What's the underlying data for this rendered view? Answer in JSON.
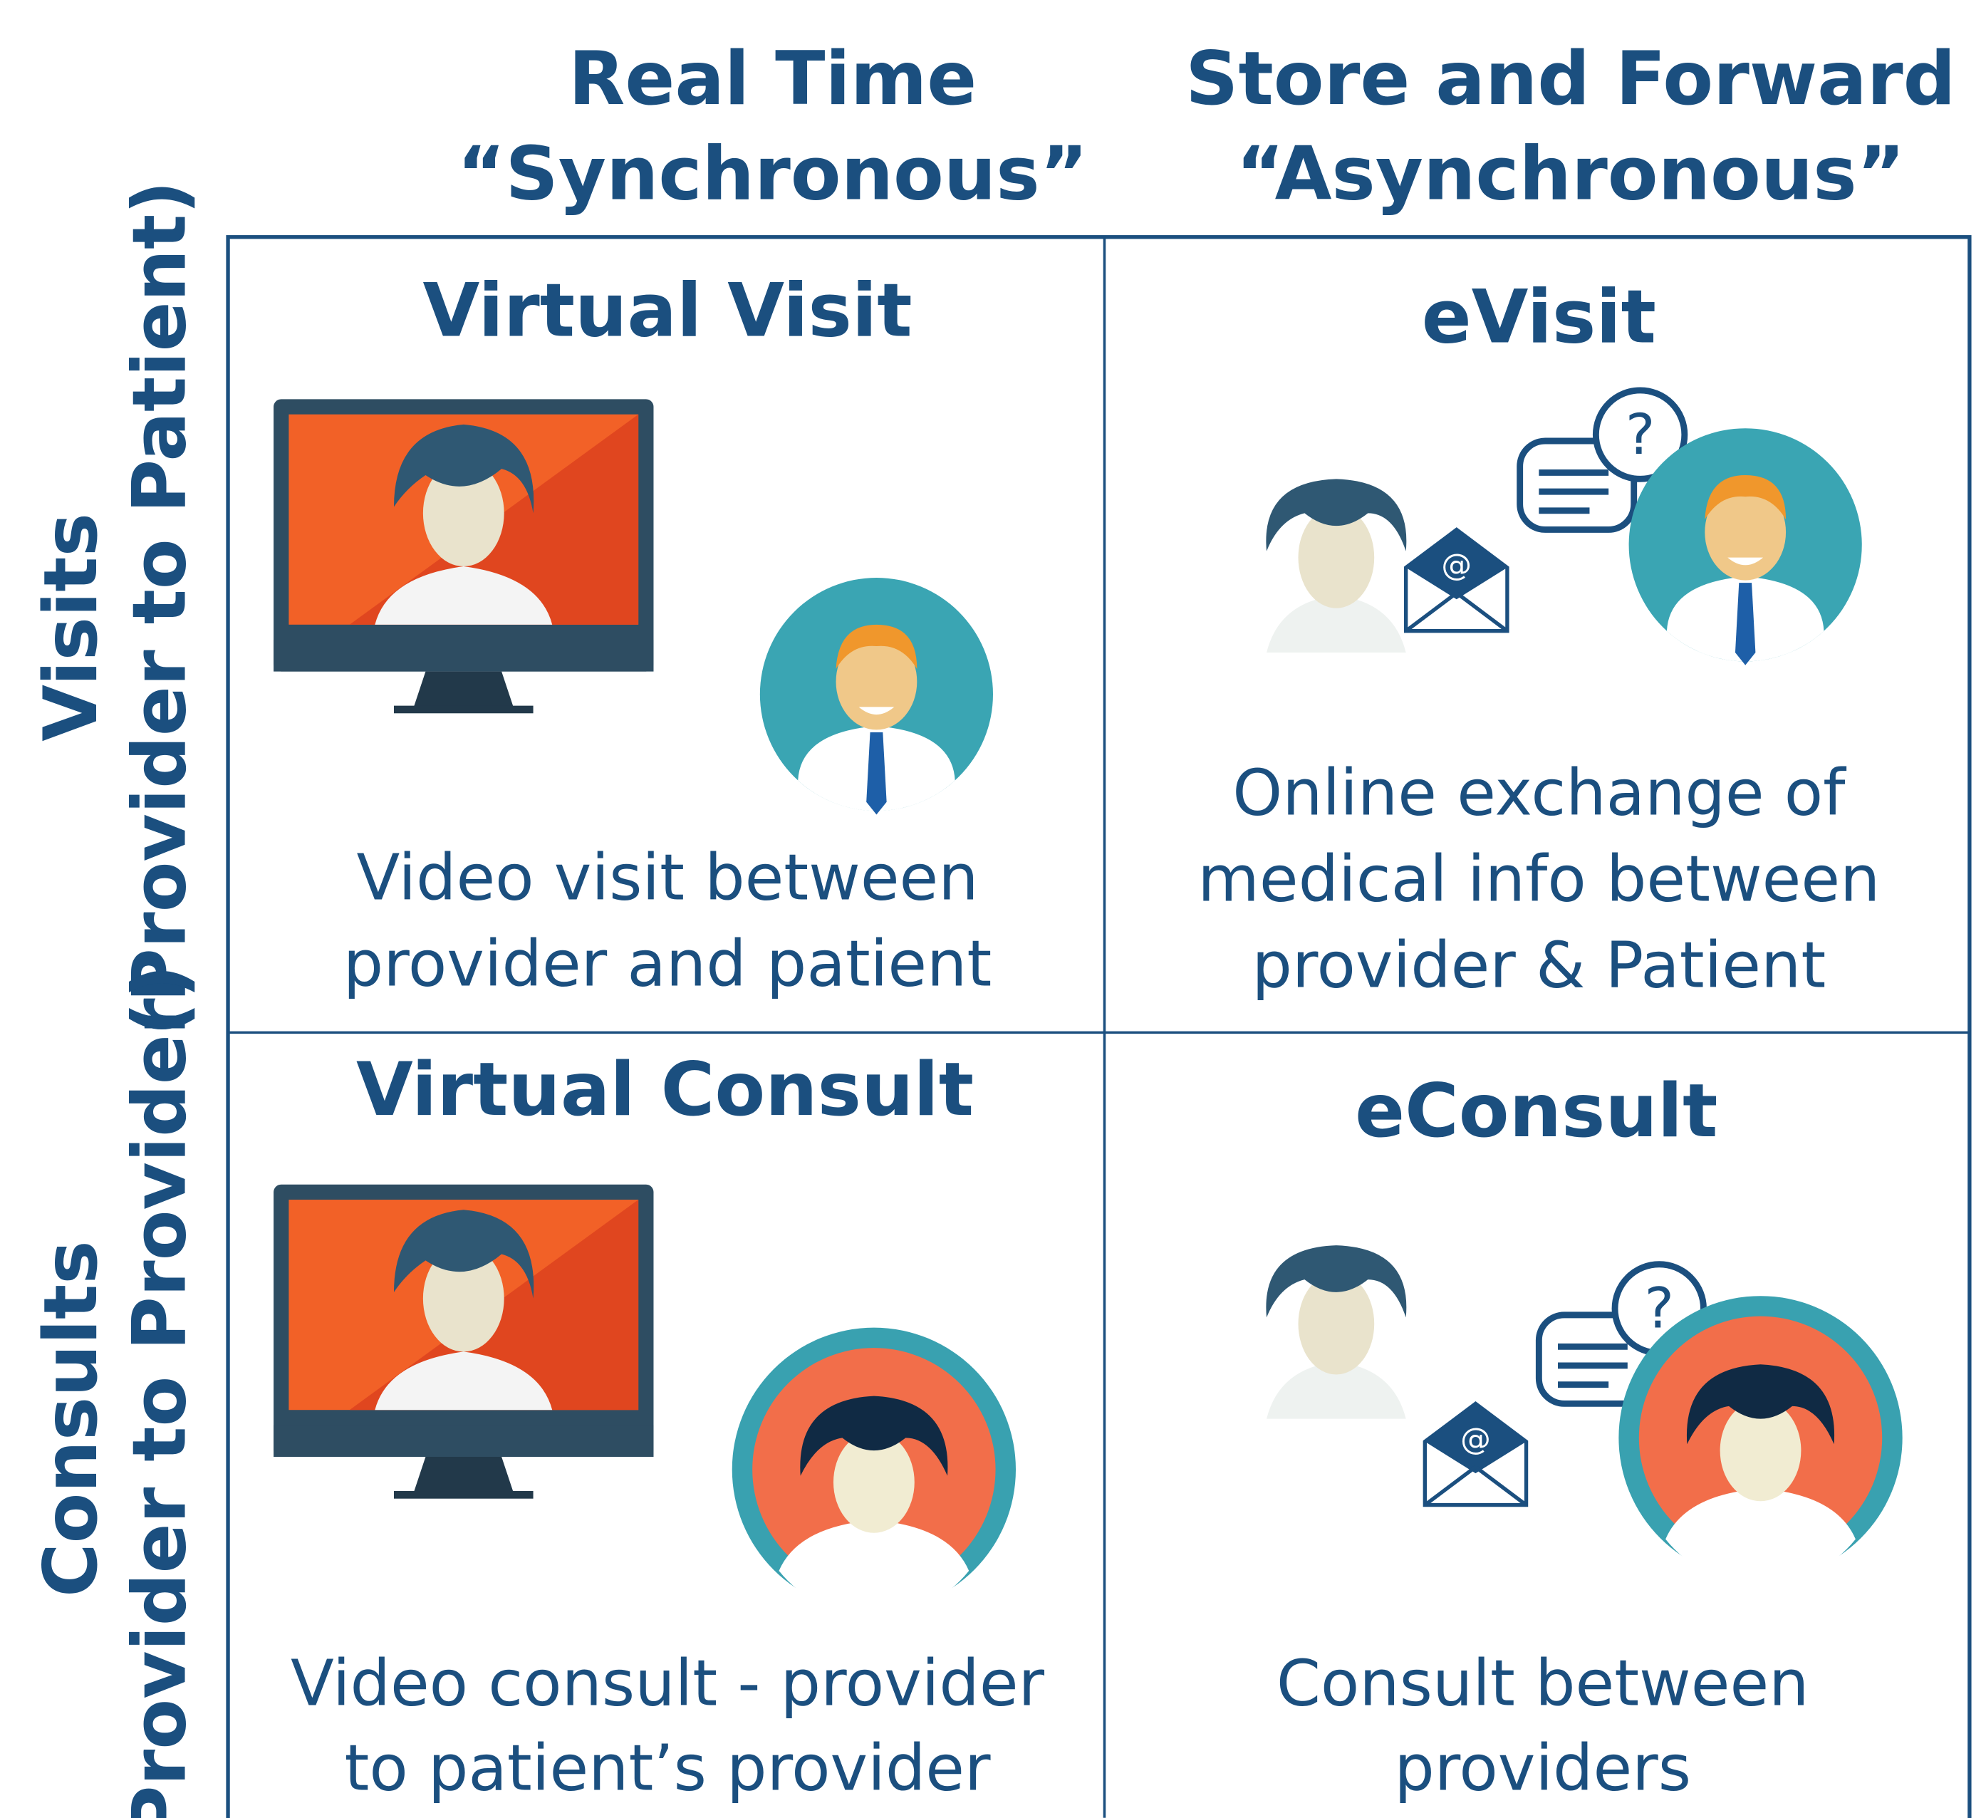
{
  "columns": [
    {
      "title": "Real Time",
      "subtitle": "“Synchronous”"
    },
    {
      "title": "Store and Forward",
      "subtitle": "“Asynchronous”"
    }
  ],
  "rows": [
    {
      "title": "Visits",
      "subtitle": "(Provider to Patient)"
    },
    {
      "title": "Consults",
      "subtitle": "(Provider to Provider)"
    }
  ],
  "cells": [
    {
      "title": "Virtual Visit",
      "description": [
        "Video visit between",
        "provider and patient"
      ]
    },
    {
      "title": "eVisit",
      "description": [
        "Online exchange of",
        "medical info between",
        "provider & Patient"
      ]
    },
    {
      "title": "Virtual Consult",
      "description": [
        "Video consult - provider",
        "to patient’s provider"
      ]
    },
    {
      "title": "eConsult",
      "description": [
        "Consult between",
        "providers"
      ]
    }
  ]
}
